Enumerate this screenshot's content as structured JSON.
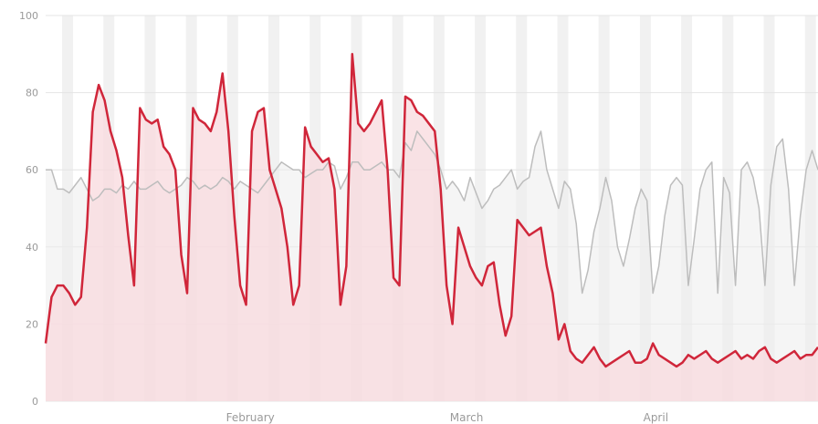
{
  "chart_data": {
    "type": "area",
    "title": "",
    "xlabel": "",
    "ylabel": "",
    "ylim": [
      0,
      100
    ],
    "y_ticks": [
      "0",
      "20",
      "40",
      "60",
      "80",
      "100"
    ],
    "x_month_labels": [
      "February",
      "March",
      "April"
    ],
    "grid": true,
    "weekend_shading": true,
    "colors": {
      "current_line": "#d0263a",
      "current_fill": "#f8dadd",
      "previous_line": "#bdbdbd",
      "previous_fill": "#eeeeee",
      "grid": "#e4e4e4",
      "axis_text": "#9a9a9a"
    },
    "series": [
      {
        "values": [
          15,
          27,
          30,
          30,
          28,
          25,
          27,
          45,
          75,
          82,
          78,
          70,
          65,
          58,
          43,
          30,
          76,
          73,
          72,
          73,
          66,
          64,
          60,
          38,
          28,
          76,
          73,
          72,
          70,
          75,
          85,
          70,
          48,
          30,
          25,
          70,
          75,
          76,
          60,
          55,
          50,
          40,
          25,
          30,
          71,
          66,
          64,
          62,
          63,
          55,
          25,
          35,
          90,
          72,
          70,
          72,
          75,
          78,
          60,
          32,
          30,
          79,
          78,
          75,
          74,
          72,
          70,
          55,
          30,
          20,
          45,
          40,
          35,
          32,
          30,
          35,
          36,
          25,
          17,
          22,
          47,
          45,
          43,
          44,
          45,
          35,
          28,
          16,
          20,
          13,
          11,
          10,
          12,
          14,
          11,
          9,
          10,
          11,
          12,
          13,
          10,
          10,
          11,
          15,
          12,
          11,
          10,
          9,
          10,
          12,
          11,
          12,
          13,
          11,
          10,
          11,
          12,
          13,
          11,
          12,
          11,
          13,
          14,
          11,
          10,
          11,
          12,
          13,
          11,
          12,
          12,
          14
        ]
      },
      {
        "values": [
          60,
          60,
          55,
          55,
          54,
          56,
          58,
          55,
          52,
          53,
          55,
          55,
          54,
          56,
          55,
          57,
          55,
          55,
          56,
          57,
          55,
          54,
          55,
          56,
          58,
          57,
          55,
          56,
          55,
          56,
          58,
          57,
          55,
          57,
          56,
          55,
          54,
          56,
          58,
          60,
          62,
          61,
          60,
          60,
          58,
          59,
          60,
          60,
          62,
          61,
          55,
          58,
          62,
          62,
          60,
          60,
          61,
          62,
          60,
          60,
          58,
          67,
          65,
          70,
          68,
          66,
          64,
          60,
          55,
          57,
          55,
          52,
          58,
          54,
          50,
          52,
          55,
          56,
          58,
          60,
          55,
          57,
          58,
          66,
          70,
          60,
          55,
          50,
          57,
          55,
          46,
          28,
          34,
          44,
          50,
          58,
          52,
          40,
          35,
          42,
          50,
          55,
          52,
          28,
          35,
          48,
          56,
          58,
          56,
          30,
          42,
          55,
          60,
          62,
          28,
          58,
          54,
          30,
          60,
          62,
          58,
          50,
          30,
          56,
          66,
          68,
          55,
          30,
          48,
          60,
          65,
          60
        ]
      }
    ]
  }
}
